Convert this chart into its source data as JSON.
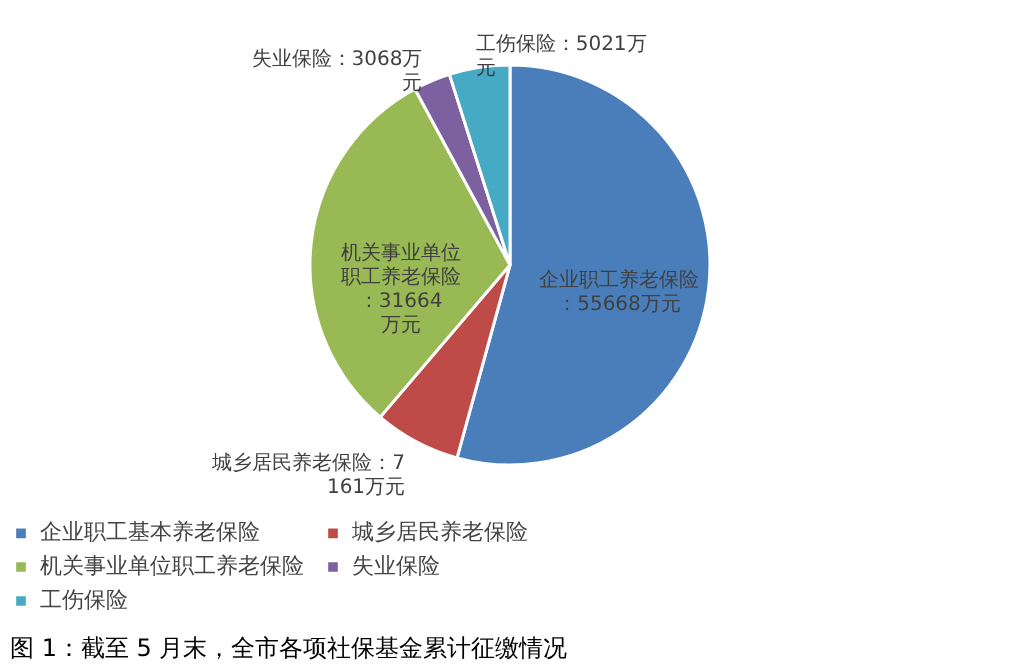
{
  "chart_data": {
    "type": "pie",
    "categories": [
      "企业职工基本养老保险",
      "城乡居民养老保险",
      "机关事业单位职工养老保险",
      "失业保险",
      "工伤保险"
    ],
    "values": [
      55668,
      7161,
      31664,
      3068,
      5021
    ],
    "colors": [
      "#4a7ebb",
      "#be4b48",
      "#98b954",
      "#7d60a0",
      "#46aac5"
    ],
    "value_labels": [
      "企业职工养老保险：55668万元",
      "城乡居民养老保险：7161万元",
      "机关事业单位职工养老保险：31664万元",
      "失业保险：3068万元",
      "工伤保险：5021万元"
    ],
    "legend": "bottom",
    "annotations": [
      "图 1：截至 5 月末，全市各项社保基金累计征缴情况"
    ]
  }
}
